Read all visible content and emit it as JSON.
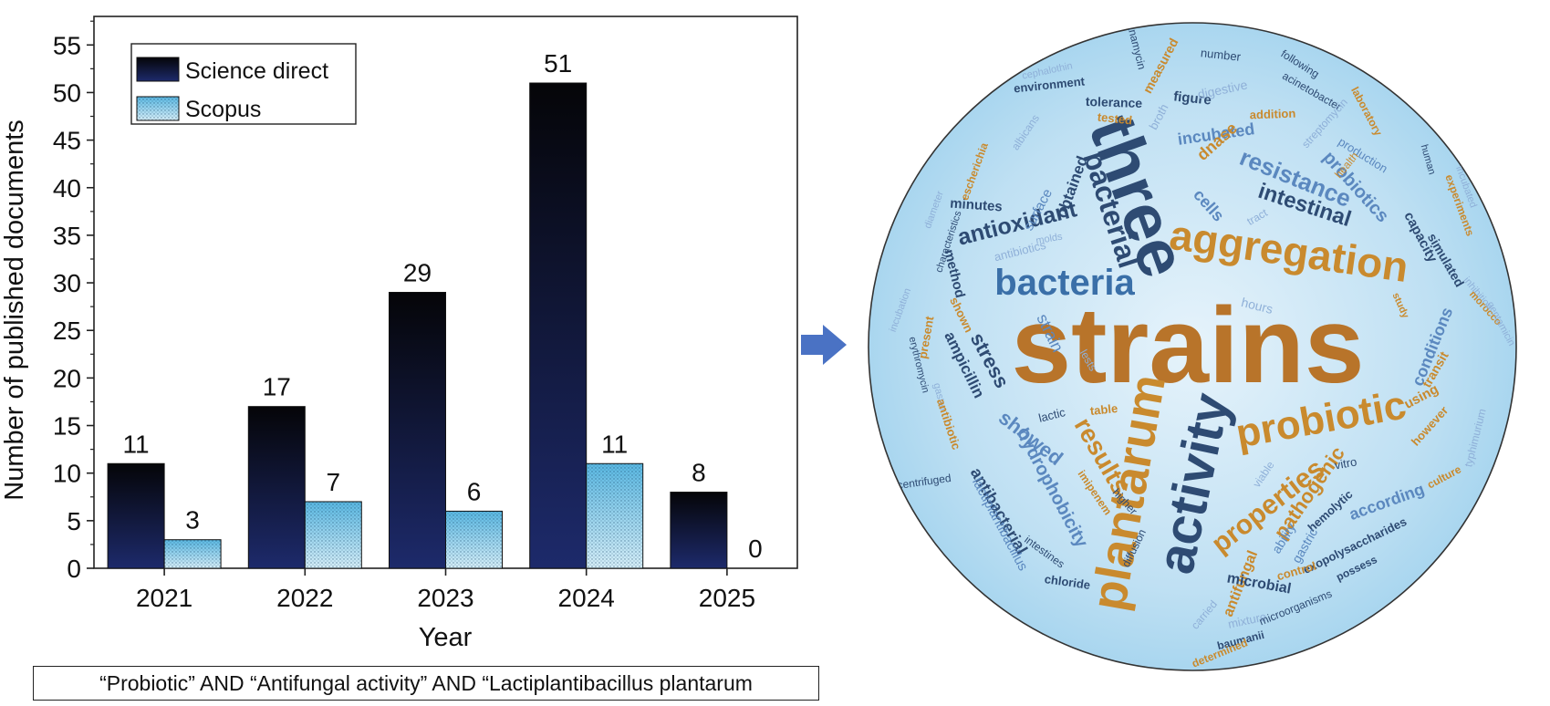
{
  "chart_data": [
    {
      "type": "bar",
      "categories": [
        "2021",
        "2022",
        "2023",
        "2024",
        "2025"
      ],
      "series": [
        {
          "name": "Science direct",
          "values": [
            11,
            17,
            29,
            51,
            8
          ],
          "color": "#1a2456"
        },
        {
          "name": "Scopus",
          "values": [
            3,
            7,
            6,
            11,
            0
          ],
          "color": "#3aa6d6"
        }
      ],
      "xlabel": "Year",
      "ylabel": "Number of published documents",
      "ylim": [
        0,
        58
      ],
      "yticks": [
        "0",
        "5",
        "10",
        "15",
        "20",
        "25",
        "30",
        "35",
        "40",
        "45",
        "50",
        "55"
      ],
      "data_labels": true,
      "legend": "top-left",
      "grid": false
    },
    {
      "type": "word_cloud",
      "words": [
        {
          "text": "strains",
          "color": "#b8742a"
        },
        {
          "text": "three",
          "color": "#2e4b73"
        },
        {
          "text": "activity",
          "color": "#2e4b73"
        },
        {
          "text": "plantarum",
          "color": "#c98a2e"
        },
        {
          "text": "aggregation",
          "color": "#c98a2e"
        },
        {
          "text": "probiotic",
          "color": "#c98a2e"
        },
        {
          "text": "bacteria",
          "color": "#3a6fa8"
        },
        {
          "text": "bacterial",
          "color": "#2e4b73"
        },
        {
          "text": "resistance",
          "color": "#5b88bf"
        },
        {
          "text": "intestinal",
          "color": "#2e4b73"
        },
        {
          "text": "results",
          "color": "#c98a2e"
        },
        {
          "text": "properties",
          "color": "#c98a2e"
        },
        {
          "text": "antioxidant",
          "color": "#2e4b73"
        },
        {
          "text": "pathogenic",
          "color": "#c98a2e"
        },
        {
          "text": "probiotics",
          "color": "#5b88bf"
        },
        {
          "text": "hydrophobicity",
          "color": "#5b88bf"
        },
        {
          "text": "showed",
          "color": "#5b88bf"
        },
        {
          "text": "conditions",
          "color": "#5b88bf"
        },
        {
          "text": "according",
          "color": "#5b88bf"
        },
        {
          "text": "antibacterial",
          "color": "#2e4b73"
        },
        {
          "text": "lactiplantibacillus",
          "color": "#5b88bf"
        },
        {
          "text": "stress",
          "color": "#2e4b73"
        },
        {
          "text": "strain",
          "color": "#5b88bf"
        },
        {
          "text": "ampicillin",
          "color": "#2e4b73"
        },
        {
          "text": "incubated",
          "color": "#5b88bf"
        },
        {
          "text": "obtained",
          "color": "#2e4b73"
        },
        {
          "text": "surface",
          "color": "#5b88bf"
        },
        {
          "text": "cells",
          "color": "#5b88bf"
        },
        {
          "text": "capacity",
          "color": "#2e4b73"
        },
        {
          "text": "dnase",
          "color": "#c98a2e"
        },
        {
          "text": "antifungal",
          "color": "#c98a2e"
        },
        {
          "text": "microbial",
          "color": "#2e4b73"
        },
        {
          "text": "method",
          "color": "#2e4b73"
        },
        {
          "text": "minutes",
          "color": "#2e4b73"
        },
        {
          "text": "figure",
          "color": "#2e4b73"
        },
        {
          "text": "tolerance",
          "color": "#2e4b73"
        },
        {
          "text": "environment",
          "color": "#2e4b73"
        },
        {
          "text": "digestive",
          "color": "#8fb0d8"
        },
        {
          "text": "measured",
          "color": "#c98a2e"
        },
        {
          "text": "tested",
          "color": "#c98a2e"
        },
        {
          "text": "broth",
          "color": "#8fb0d8"
        },
        {
          "text": "addition",
          "color": "#c98a2e"
        },
        {
          "text": "kanamycin",
          "color": "#2e4b73"
        },
        {
          "text": "number",
          "color": "#2e4b73"
        },
        {
          "text": "following",
          "color": "#2e4b73"
        },
        {
          "text": "acinetobacter",
          "color": "#2e4b73"
        },
        {
          "text": "laboratory",
          "color": "#c98a2e"
        },
        {
          "text": "cephalothin",
          "color": "#8fb0d8"
        },
        {
          "text": "albicans",
          "color": "#8fb0d8"
        },
        {
          "text": "escherichia",
          "color": "#c98a2e"
        },
        {
          "text": "streptomycin",
          "color": "#8fb0d8"
        },
        {
          "text": "production",
          "color": "#5b88bf"
        },
        {
          "text": "health",
          "color": "#c98a2e"
        },
        {
          "text": "human",
          "color": "#2e4b73"
        },
        {
          "text": "experiments",
          "color": "#c98a2e"
        },
        {
          "text": "incubated",
          "color": "#8fb0d8"
        },
        {
          "text": "simulated",
          "color": "#2e4b73"
        },
        {
          "text": "diameter",
          "color": "#8fb0d8"
        },
        {
          "text": "characteristics",
          "color": "#2e4b73"
        },
        {
          "text": "antibiotics",
          "color": "#8fb0d8"
        },
        {
          "text": "molds",
          "color": "#8fb0d8"
        },
        {
          "text": "tract",
          "color": "#8fb0d8"
        },
        {
          "text": "hours",
          "color": "#8fb0d8"
        },
        {
          "text": "incubation",
          "color": "#8fb0d8"
        },
        {
          "text": "shown",
          "color": "#c98a2e"
        },
        {
          "text": "present",
          "color": "#c98a2e"
        },
        {
          "text": "erythromycin",
          "color": "#2e4b73"
        },
        {
          "text": "gastro",
          "color": "#8fb0d8"
        },
        {
          "text": "antibiotic",
          "color": "#c98a2e"
        },
        {
          "text": "lests",
          "color": "#8fb0d8"
        },
        {
          "text": "table",
          "color": "#c98a2e"
        },
        {
          "text": "lactic",
          "color": "#2e4b73"
        },
        {
          "text": "transit",
          "color": "#c98a2e"
        },
        {
          "text": "using",
          "color": "#c98a2e"
        },
        {
          "text": "however",
          "color": "#c98a2e"
        },
        {
          "text": "typhimurium",
          "color": "#8fb0d8"
        },
        {
          "text": "culture",
          "color": "#c98a2e"
        },
        {
          "text": "inhibition",
          "color": "#8fb0d8"
        },
        {
          "text": "morocco",
          "color": "#c98a2e"
        },
        {
          "text": "gentamicin",
          "color": "#8fb0d8"
        },
        {
          "text": "study",
          "color": "#c98a2e"
        },
        {
          "text": "vitro",
          "color": "#2e4b73"
        },
        {
          "text": "viable",
          "color": "#8fb0d8"
        },
        {
          "text": "hemolytic",
          "color": "#2e4b73"
        },
        {
          "text": "exopolysaccharides",
          "color": "#2e4b73"
        },
        {
          "text": "possess",
          "color": "#2e4b73"
        },
        {
          "text": "ability",
          "color": "#5b88bf"
        },
        {
          "text": "gastric",
          "color": "#5b88bf"
        },
        {
          "text": "control",
          "color": "#c98a2e"
        },
        {
          "text": "centrifuged",
          "color": "#2e4b73"
        },
        {
          "text": "imipenem",
          "color": "#c98a2e"
        },
        {
          "text": "higher",
          "color": "#2e4b73"
        },
        {
          "text": "diffusion",
          "color": "#2e4b73"
        },
        {
          "text": "chloride",
          "color": "#2e4b73"
        },
        {
          "text": "intestines",
          "color": "#2e4b73"
        },
        {
          "text": "carried",
          "color": "#8fb0d8"
        },
        {
          "text": "mixture",
          "color": "#8fb0d8"
        },
        {
          "text": "baumanii",
          "color": "#2e4b73"
        },
        {
          "text": "microorganisms",
          "color": "#2e4b73"
        },
        {
          "text": "determined",
          "color": "#c98a2e"
        }
      ]
    }
  ],
  "query_text": "“Probiotic” AND “Antifungal activity” AND “Lactiplantibacillus plantarum",
  "arrow_color": "#4a72c4"
}
